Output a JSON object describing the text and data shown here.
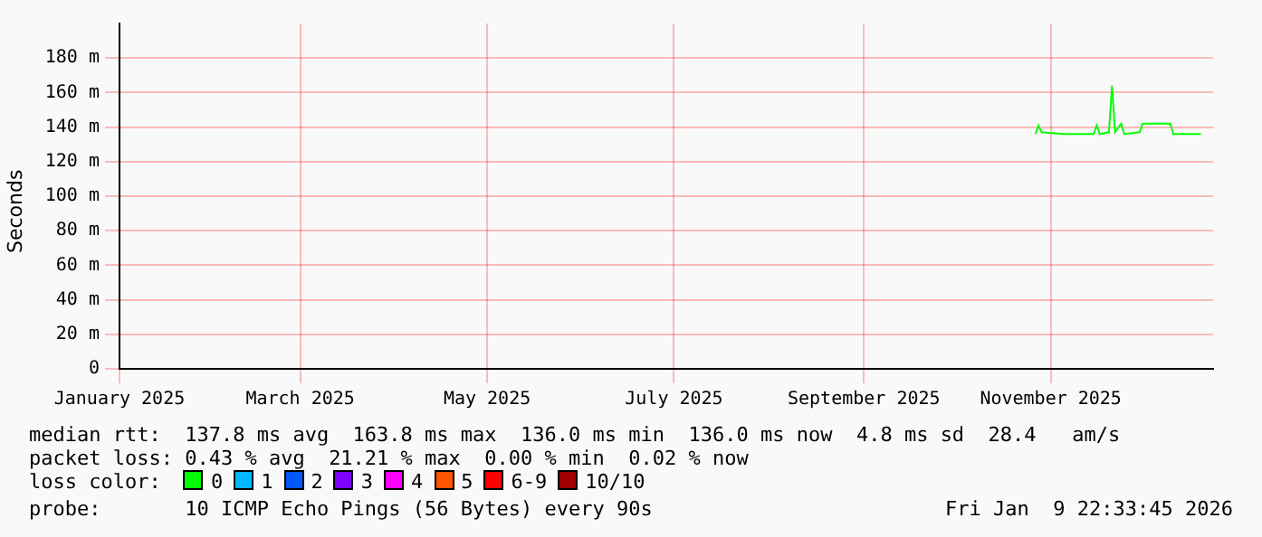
{
  "chart_data": {
    "type": "line",
    "ylabel": "Seconds",
    "xlim": [
      "2025-01-01",
      "2025-12-24"
    ],
    "ylim": [
      0,
      200
    ],
    "xticks": [
      {
        "value": "2025-01-01",
        "label": "January 2025"
      },
      {
        "value": "2025-03-01",
        "label": "March 2025"
      },
      {
        "value": "2025-05-01",
        "label": "May 2025"
      },
      {
        "value": "2025-07-01",
        "label": "July 2025"
      },
      {
        "value": "2025-09-01",
        "label": "September 2025"
      },
      {
        "value": "2025-11-01",
        "label": "November 2025"
      }
    ],
    "yticks": [
      0,
      {
        "value": 20,
        "label": "20 m"
      },
      {
        "value": 40,
        "label": "40 m"
      },
      {
        "value": 60,
        "label": "60 m"
      },
      {
        "value": 80,
        "label": "80 m"
      },
      {
        "value": 100,
        "label": "100 m"
      },
      {
        "value": 120,
        "label": "120 m"
      },
      {
        "value": 140,
        "label": "140 m"
      },
      {
        "value": 160,
        "label": "160 m"
      },
      {
        "value": 180,
        "label": "180 m"
      }
    ],
    "grid": true,
    "legend": "bottom",
    "legend_title": "loss color:",
    "x": [
      "2025-10-27",
      "2025-10-28",
      "2025-10-29",
      "2025-11-05",
      "2025-11-15",
      "2025-11-16",
      "2025-11-17",
      "2025-11-20",
      "2025-11-21",
      "2025-11-22",
      "2025-11-24",
      "2025-11-25",
      "2025-11-30",
      "2025-12-01",
      "2025-12-10",
      "2025-12-11",
      "2025-12-20"
    ],
    "series": [
      {
        "name": "0",
        "color": "#00ff00",
        "values": [
          136,
          141,
          137,
          136,
          136,
          141,
          136,
          137,
          164,
          137,
          142,
          136,
          137,
          142,
          142,
          136,
          136
        ]
      },
      {
        "name": "1",
        "color": "#00b8ff",
        "values": [
          null,
          null,
          null,
          null,
          null,
          null,
          null,
          null,
          null,
          null,
          null,
          null,
          null,
          null,
          null,
          null,
          null
        ]
      },
      {
        "name": "2",
        "color": "#0059ff",
        "values": [
          null,
          null,
          null,
          null,
          null,
          null,
          null,
          null,
          null,
          null,
          null,
          null,
          null,
          null,
          null,
          null,
          null
        ]
      },
      {
        "name": "3",
        "color": "#7e00ff",
        "values": [
          null,
          null,
          null,
          null,
          null,
          null,
          null,
          null,
          null,
          null,
          null,
          null,
          null,
          null,
          null,
          null,
          null
        ]
      },
      {
        "name": "4",
        "color": "#ff00ff",
        "values": [
          null,
          null,
          null,
          null,
          null,
          null,
          null,
          null,
          null,
          null,
          null,
          null,
          null,
          null,
          null,
          null,
          null
        ]
      },
      {
        "name": "5",
        "color": "#ff5500",
        "values": [
          null,
          null,
          null,
          null,
          null,
          null,
          null,
          null,
          null,
          null,
          null,
          null,
          null,
          null,
          null,
          null,
          null
        ]
      },
      {
        "name": "6-9",
        "color": "#ff0000",
        "values": [
          null,
          null,
          null,
          null,
          null,
          null,
          null,
          null,
          null,
          null,
          null,
          null,
          null,
          null,
          null,
          null,
          null
        ]
      },
      {
        "name": "10/10",
        "color": "#a10000",
        "values": [
          null,
          null,
          null,
          null,
          null,
          null,
          null,
          null,
          null,
          null,
          null,
          null,
          null,
          null,
          null,
          null,
          null
        ]
      }
    ],
    "annotations": [
      "median rtt:  137.8 ms avg  163.8 ms max  136.0 ms min  136.0 ms now  4.8 ms sd  28.4   am/s",
      "packet loss: 0.43 % avg  21.21 % max  0.00 % min  0.02 % now",
      "probe:       10 ICMP Echo Pings (56 Bytes) every 90s",
      "Fri Jan  9 22:33:45 2026"
    ]
  }
}
